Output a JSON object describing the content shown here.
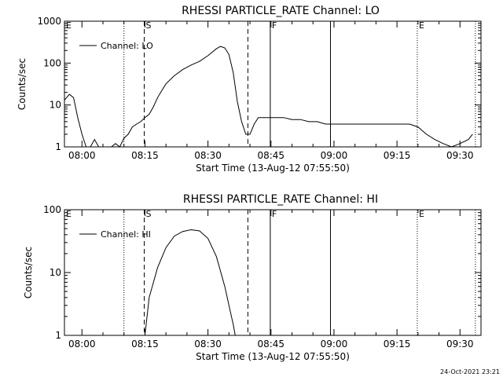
{
  "footer": {
    "timestamp": "24-Oct-2021 23:21"
  },
  "chart_data": [
    {
      "type": "line",
      "title": "RHESSI PARTICLE_RATE Channel: LO",
      "xlabel": "Start Time (13-Aug-12 07:55:50)",
      "ylabel": "Counts/sec",
      "yscale": "log",
      "ylim": [
        1,
        1000
      ],
      "xlim": [
        "07:55:50",
        "09:35:00"
      ],
      "x_ticks": [
        "08:00",
        "08:15",
        "08:30",
        "08:45",
        "09:00",
        "09:15",
        "09:30"
      ],
      "y_ticks": [
        "1",
        "10",
        "100",
        "1000"
      ],
      "legend": {
        "position": "top-left",
        "entries": [
          "Channel: LO"
        ]
      },
      "markers": [
        {
          "label": "E",
          "time": "07:55:50",
          "style": "dotted"
        },
        {
          "label": "",
          "time": "08:10:00",
          "style": "dotted"
        },
        {
          "label": "S",
          "time": "08:14:50",
          "style": "dashed"
        },
        {
          "label": "",
          "time": "08:39:30",
          "style": "dashed"
        },
        {
          "label": "F",
          "time": "08:44:50",
          "style": "solid"
        },
        {
          "label": "",
          "time": "08:59:10",
          "style": "solid"
        },
        {
          "label": "E",
          "time": "09:19:50",
          "style": "dotted"
        },
        {
          "label": "",
          "time": "09:33:40",
          "style": "dotted"
        }
      ],
      "series": [
        {
          "name": "Channel: LO",
          "x": [
            "07:55:50",
            "07:57:00",
            "07:58:00",
            "07:59:00",
            "08:00:00",
            "08:01:00",
            "08:02:00",
            "08:03:00",
            "08:04:00",
            "08:05:00",
            "08:06:00",
            "08:07:00",
            "08:08:00",
            "08:09:00",
            "08:10:00",
            "08:11:00",
            "08:12:00",
            "08:13:00",
            "08:14:00",
            "08:15:00",
            "08:16:00",
            "08:17:00",
            "08:18:00",
            "08:19:00",
            "08:20:00",
            "08:22:00",
            "08:24:00",
            "08:26:00",
            "08:28:00",
            "08:30:00",
            "08:32:00",
            "08:33:00",
            "08:34:00",
            "08:35:00",
            "08:36:00",
            "08:37:00",
            "08:38:00",
            "08:39:00",
            "08:40:00",
            "08:41:00",
            "08:42:00",
            "08:44:00",
            "08:46:00",
            "08:48:00",
            "08:50:00",
            "08:52:00",
            "08:54:00",
            "08:56:00",
            "08:58:00",
            "09:00:00",
            "09:02:00",
            "09:04:00",
            "09:06:00",
            "09:08:00",
            "09:10:00",
            "09:12:00",
            "09:14:00",
            "09:16:00",
            "09:18:00",
            "09:20:00",
            "09:22:00",
            "09:24:00",
            "09:26:00",
            "09:28:00",
            "09:30:00",
            "09:32:00",
            "09:33:00"
          ],
          "values": [
            13,
            18,
            15,
            5,
            2,
            1,
            1,
            1.5,
            1,
            1,
            1,
            1,
            1.2,
            1,
            1.6,
            2,
            3,
            3.5,
            4,
            5,
            6,
            9,
            15,
            22,
            32,
            50,
            70,
            90,
            110,
            150,
            220,
            250,
            230,
            160,
            60,
            12,
            4,
            2,
            2,
            3.5,
            5,
            5,
            5,
            5,
            4.5,
            4.5,
            4,
            4,
            3.5,
            3.5,
            3.5,
            3.5,
            3.5,
            3.5,
            3.5,
            3.5,
            3.5,
            3.5,
            3.5,
            3,
            2,
            1.5,
            1.2,
            1,
            1.2,
            1.5,
            2
          ]
        }
      ]
    },
    {
      "type": "line",
      "title": "RHESSI PARTICLE_RATE Channel: HI",
      "xlabel": "Start Time (13-Aug-12 07:55:50)",
      "ylabel": "Counts/sec",
      "yscale": "log",
      "ylim": [
        1,
        100
      ],
      "xlim": [
        "07:55:50",
        "09:35:00"
      ],
      "x_ticks": [
        "08:00",
        "08:15",
        "08:30",
        "08:45",
        "09:00",
        "09:15",
        "09:30"
      ],
      "y_ticks": [
        "1",
        "10",
        "100"
      ],
      "legend": {
        "position": "top-left",
        "entries": [
          "Channel: HI"
        ]
      },
      "markers": [
        {
          "label": "E",
          "time": "07:55:50",
          "style": "dotted"
        },
        {
          "label": "",
          "time": "08:10:00",
          "style": "dotted"
        },
        {
          "label": "S",
          "time": "08:14:50",
          "style": "dashed"
        },
        {
          "label": "",
          "time": "08:39:30",
          "style": "dashed"
        },
        {
          "label": "F",
          "time": "08:44:50",
          "style": "solid"
        },
        {
          "label": "",
          "time": "08:59:10",
          "style": "solid"
        },
        {
          "label": "E",
          "time": "09:19:50",
          "style": "dotted"
        },
        {
          "label": "",
          "time": "09:33:40",
          "style": "dotted"
        }
      ],
      "series": [
        {
          "name": "Channel: HI",
          "x": [
            "08:15:00",
            "08:16:00",
            "08:18:00",
            "08:20:00",
            "08:22:00",
            "08:24:00",
            "08:26:00",
            "08:28:00",
            "08:30:00",
            "08:32:00",
            "08:34:00",
            "08:35:00",
            "08:36:00",
            "08:36:30"
          ],
          "values": [
            1,
            4,
            12,
            25,
            38,
            45,
            48,
            46,
            35,
            18,
            6,
            3,
            1.5,
            1
          ]
        }
      ]
    }
  ]
}
